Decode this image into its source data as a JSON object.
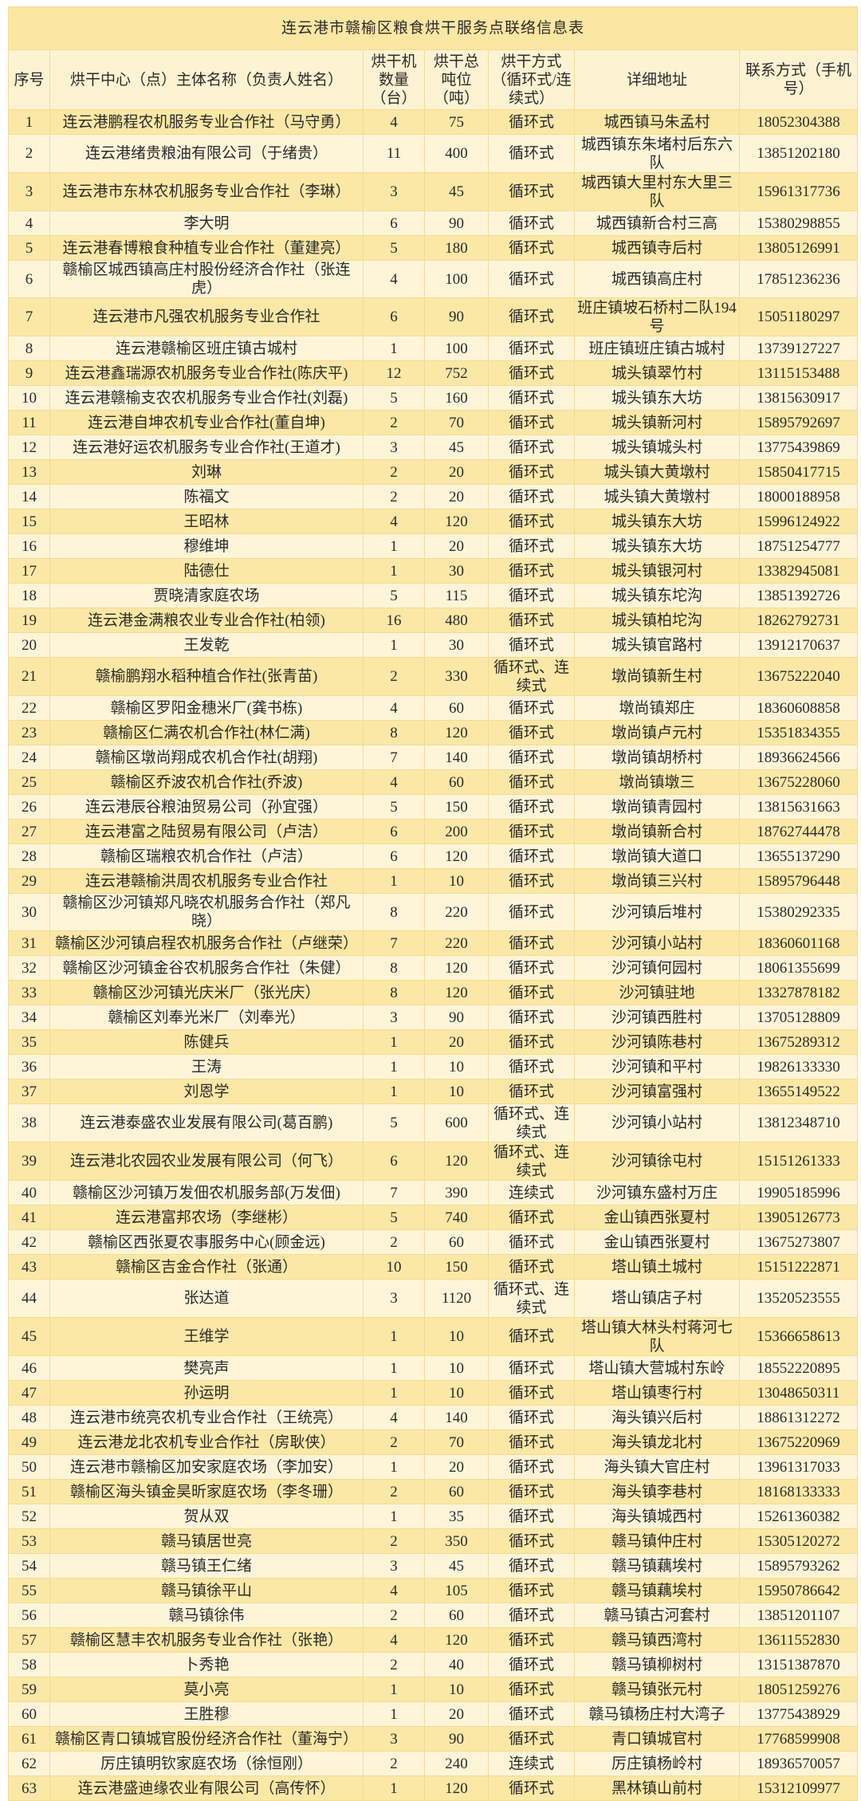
{
  "title": "连云港市赣榆区粮食烘干服务点联络信息表",
  "columns": [
    "序号",
    "烘干中心（点）主体名称（负责人姓名）",
    "烘干机数量（台）",
    "烘干总吨位（吨）",
    "烘干方式（循环式/连续式）",
    "详细地址",
    "联系方式（手机号）"
  ],
  "colors": {
    "title_bg": "#fbe6a2",
    "header_bg": "#fdf3d2",
    "row_dark": "#fbe8a6",
    "row_light": "#fef5d9",
    "border": "#f1dc92"
  },
  "rows": [
    [
      "1",
      "连云港鹏程农机服务专业合作社（马守勇）",
      "4",
      "75",
      "循环式",
      "城西镇马朱孟村",
      "18052304388"
    ],
    [
      "2",
      "连云港绪贵粮油有限公司（于绪贵）",
      "11",
      "400",
      "循环式",
      "城西镇东朱堵村后东六队",
      "13851202180"
    ],
    [
      "3",
      "连云港市东林农机服务专业合作社（李琳）",
      "3",
      "45",
      "循环式",
      "城西镇大里村东大里三队",
      "15961317736"
    ],
    [
      "4",
      "李大明",
      "6",
      "90",
      "循环式",
      "城西镇新合村三高",
      "15380298855"
    ],
    [
      "5",
      "连云港春博粮食种植专业合作社（董建亮）",
      "5",
      "180",
      "循环式",
      "城西镇寺后村",
      "13805126991"
    ],
    [
      "6",
      "赣榆区城西镇高庄村股份经济合作社（张连虎）",
      "4",
      "100",
      "循环式",
      "城西镇高庄村",
      "17851236236"
    ],
    [
      "7",
      "连云港市凡强农机服务专业合作社",
      "6",
      "90",
      "循环式",
      "班庄镇坡石桥村二队194号",
      "15051180297"
    ],
    [
      "8",
      "连云港赣榆区班庄镇古城村",
      "1",
      "100",
      "循环式",
      "班庄镇班庄镇古城村",
      "13739127227"
    ],
    [
      "9",
      "连云港鑫瑞源农机服务专业合作社(陈庆平)",
      "12",
      "752",
      "循环式",
      "城头镇翠竹村",
      "13115153488"
    ],
    [
      "10",
      "连云港赣榆支农农机服务专业合作社(刘磊)",
      "5",
      "160",
      "循环式",
      "城头镇东大坊",
      "13815630917"
    ],
    [
      "11",
      "连云港自坤农机专业合作社(董自坤)",
      "2",
      "70",
      "循环式",
      "城头镇新河村",
      "15895792697"
    ],
    [
      "12",
      "连云港好运农机服务专业合作社(王道才)",
      "3",
      "45",
      "循环式",
      "城头镇城头村",
      "13775439869"
    ],
    [
      "13",
      "刘琳",
      "2",
      "20",
      "循环式",
      "城头镇大黄墩村",
      "15850417715"
    ],
    [
      "14",
      "陈福文",
      "2",
      "20",
      "循环式",
      "城头镇大黄墩村",
      "18000188958"
    ],
    [
      "15",
      "王昭林",
      "4",
      "120",
      "循环式",
      "城头镇东大坊",
      "15996124922"
    ],
    [
      "16",
      "穆维坤",
      "1",
      "20",
      "循环式",
      "城头镇东大坊",
      "18751254777"
    ],
    [
      "17",
      "陆德仕",
      "1",
      "30",
      "循环式",
      "城头镇银河村",
      "13382945081"
    ],
    [
      "18",
      "贾晓清家庭农场",
      "5",
      "115",
      "循环式",
      "城头镇东坨沟",
      "13851392726"
    ],
    [
      "19",
      "连云港金满粮农业专业合作社(柏领)",
      "16",
      "480",
      "循环式",
      "城头镇柏坨沟",
      "18262792731"
    ],
    [
      "20",
      "王发乾",
      "1",
      "30",
      "循环式",
      "城头镇官路村",
      "13912170637"
    ],
    [
      "21",
      "赣榆鹏翔水稻种植合作社(张青苗)",
      "2",
      "330",
      "循环式、连续式",
      "墩尚镇新生村",
      "13675222040"
    ],
    [
      "22",
      "赣榆区罗阳金穗米厂(龚书栋)",
      "4",
      "60",
      "循环式",
      "墩尚镇郑庄",
      "18360608858"
    ],
    [
      "23",
      "赣榆区仁满农机合作社(林仁满)",
      "8",
      "120",
      "循环式",
      "墩尚镇卢元村",
      "15351834355"
    ],
    [
      "24",
      "赣榆区墩尚翔成农机合作社(胡翔)",
      "7",
      "140",
      "循环式",
      "墩尚镇胡桥村",
      "18936624566"
    ],
    [
      "25",
      "赣榆区乔波农机合作社(乔波)",
      "4",
      "60",
      "循环式",
      "墩尚镇墩三",
      "13675228060"
    ],
    [
      "26",
      "连云港辰谷粮油贸易公司（孙宜强）",
      "5",
      "150",
      "循环式",
      "墩尚镇青园村",
      "13815631663"
    ],
    [
      "27",
      "连云港富之陆贸易有限公司（卢洁）",
      "6",
      "200",
      "循环式",
      "墩尚镇新合村",
      "18762744478"
    ],
    [
      "28",
      "赣榆区瑞粮农机合作社（卢洁）",
      "6",
      "120",
      "循环式",
      "墩尚镇大道口",
      "13655137290"
    ],
    [
      "29",
      "连云港赣榆洪周农机服务专业合作社",
      "1",
      "10",
      "循环式",
      "墩尚镇三兴村",
      "15895796448"
    ],
    [
      "30",
      "赣榆区沙河镇郑凡晓农机服务合作社（郑凡晓）",
      "8",
      "220",
      "循环式",
      "沙河镇后堆村",
      "15380292335"
    ],
    [
      "31",
      "赣榆区沙河镇启程农机服务合作社（卢继荣）",
      "7",
      "220",
      "循环式",
      "沙河镇小站村",
      "18360601168"
    ],
    [
      "32",
      "赣榆区沙河镇金谷农机服务合作社（朱健）",
      "8",
      "120",
      "循环式",
      "沙河镇何园村",
      "18061355699"
    ],
    [
      "33",
      "赣榆区沙河镇光庆米厂（张光庆）",
      "8",
      "120",
      "循环式",
      "沙河镇驻地",
      "13327878182"
    ],
    [
      "34",
      "赣榆区刘奉光米厂（刘奉光）",
      "3",
      "90",
      "循环式",
      "沙河镇西胜村",
      "13705128809"
    ],
    [
      "35",
      "陈健兵",
      "1",
      "20",
      "循环式",
      "沙河镇陈巷村",
      "13675289312"
    ],
    [
      "36",
      "王涛",
      "1",
      "10",
      "循环式",
      "沙河镇和平村",
      "19826133330"
    ],
    [
      "37",
      "刘恩学",
      "1",
      "10",
      "循环式",
      "沙河镇富强村",
      "13655149522"
    ],
    [
      "38",
      "连云港泰盛农业发展有限公司(葛百鹏)",
      "5",
      "600",
      "循环式、连续式",
      "沙河镇小站村",
      "13812348710"
    ],
    [
      "39",
      "连云港北农园农业发展有限公司（何飞）",
      "6",
      "120",
      "循环式、连续式",
      "沙河镇徐屯村",
      "15151261333"
    ],
    [
      "40",
      "赣榆区沙河镇万发佃农机服务部(万发佃)",
      "7",
      "390",
      "连续式",
      "沙河镇东盛村万庄",
      "19905185996"
    ],
    [
      "41",
      "连云港富邦农场（李继彬）",
      "5",
      "740",
      "循环式",
      "金山镇西张夏村",
      "13905126773"
    ],
    [
      "42",
      "赣榆区西张夏农事服务中心(顾金远)",
      "2",
      "60",
      "循环式",
      "金山镇西张夏村",
      "13675273807"
    ],
    [
      "43",
      "赣榆区吉金合作社（张通）",
      "10",
      "150",
      "循环式",
      "塔山镇土城村",
      "15151222871"
    ],
    [
      "44",
      "张达道",
      "3",
      "1120",
      "循环式、连续式",
      "塔山镇店子村",
      "13520523555"
    ],
    [
      "45",
      "王维学",
      "1",
      "10",
      "循环式",
      "塔山镇大林头村蒋河七队",
      "15366658613"
    ],
    [
      "46",
      "樊亮声",
      "1",
      "10",
      "循环式",
      "塔山镇大营城村东岭",
      "18552220895"
    ],
    [
      "47",
      "孙运明",
      "1",
      "10",
      "循环式",
      "塔山镇枣行村",
      "13048650311"
    ],
    [
      "48",
      "连云港市统亮农机专业合作社（王统亮）",
      "4",
      "140",
      "循环式",
      "海头镇兴后村",
      "18861312272"
    ],
    [
      "49",
      "连云港龙北农机专业合作社（房耿侠）",
      "2",
      "70",
      "循环式",
      "海头镇龙北村",
      "13675220969"
    ],
    [
      "50",
      "连云港市赣榆区加安家庭农场（李加安）",
      "1",
      "20",
      "循环式",
      "海头镇大官庄村",
      "13961317033"
    ],
    [
      "51",
      "赣榆区海头镇金昊昕家庭农场（李冬珊）",
      "2",
      "60",
      "循环式",
      "海头镇李巷村",
      "18168133333"
    ],
    [
      "52",
      "贺从双",
      "1",
      "35",
      "循环式",
      "海头镇城西村",
      "15261360382"
    ],
    [
      "53",
      "赣马镇居世亮",
      "2",
      "350",
      "循环式",
      "赣马镇仲庄村",
      "15305120272"
    ],
    [
      "54",
      "赣马镇王仁绪",
      "3",
      "45",
      "循环式",
      "赣马镇藕埃村",
      "15895793262"
    ],
    [
      "55",
      "赣马镇徐平山",
      "4",
      "105",
      "循环式",
      "赣马镇藕埃村",
      "15950786642"
    ],
    [
      "56",
      "赣马镇徐伟",
      "2",
      "60",
      "循环式",
      "赣马镇古河套村",
      "13851201107"
    ],
    [
      "57",
      "赣榆区慧丰农机服务专业合作社（张艳）",
      "4",
      "120",
      "循环式",
      "赣马镇西湾村",
      "13611552830"
    ],
    [
      "58",
      "卜秀艳",
      "2",
      "40",
      "循环式",
      "赣马镇柳树村",
      "13151387870"
    ],
    [
      "59",
      "莫小亮",
      "1",
      "10",
      "循环式",
      "赣马镇张元村",
      "18051259276"
    ],
    [
      "60",
      "王胜穆",
      "1",
      "20",
      "循环式",
      "赣马镇杨庄村大湾子",
      "13775438929"
    ],
    [
      "61",
      "赣榆区青口镇城官股份经济合作社（董海宁）",
      "3",
      "90",
      "循环式",
      "青口镇城官村",
      "17768599908"
    ],
    [
      "62",
      "厉庄镇明钦家庭农场（徐恒刚）",
      "2",
      "240",
      "连续式",
      "厉庄镇杨岭村",
      "18936570057"
    ],
    [
      "63",
      "连云港盛迪缘农业有限公司（高传怀）",
      "1",
      "120",
      "循环式",
      "黑林镇山前村",
      "15312109977"
    ]
  ]
}
